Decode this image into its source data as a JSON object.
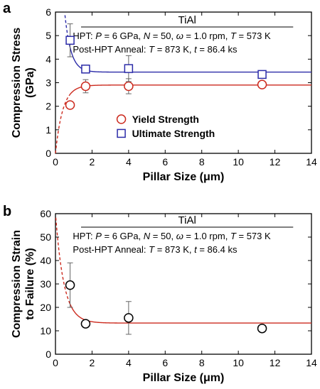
{
  "chart_data": [
    {
      "type": "scatter",
      "panel_label": "a",
      "xlabel": "Pillar Size (μm)",
      "ylabel_lines": [
        "Compression Stress",
        "(GPa)"
      ],
      "xlim": [
        0,
        14
      ],
      "ylim": [
        0,
        6
      ],
      "x_ticks": [
        0,
        2,
        4,
        6,
        8,
        10,
        12,
        14
      ],
      "y_ticks": [
        0,
        1,
        2,
        3,
        4,
        5,
        6
      ],
      "title": "TiAl",
      "annotations": [
        "HPT: P = 6 GPa, N = 50, ω = 1.0 rpm, T = 573 K",
        "Post-HPT Anneal: T = 873 K, t = 86.4 ks"
      ],
      "legend_placement": "center",
      "series": [
        {
          "name": "Yield Strength",
          "marker": "circle",
          "color": "#cc2a1e",
          "x": [
            0.8,
            1.65,
            4.0,
            11.3
          ],
          "y": [
            2.05,
            2.85,
            2.85,
            2.92
          ],
          "err": [
            0,
            0.28,
            0.32,
            0
          ]
        },
        {
          "name": "Ultimate Strength",
          "marker": "square",
          "color": "#2b2ba8",
          "x": [
            0.8,
            1.65,
            4.0,
            11.3
          ],
          "y": [
            4.8,
            3.58,
            3.6,
            3.35
          ],
          "err": [
            0.7,
            0,
            0.55,
            0
          ]
        }
      ],
      "fits": [
        {
          "color": "#cc2a1e",
          "form": "rise",
          "plateau": 2.9,
          "k": 2.5,
          "dashed_until": 0.8
        },
        {
          "color": "#2b2ba8",
          "form": "decay",
          "plateau": 3.45,
          "amp": 11.5,
          "k": 3.0,
          "dashed_until": 0.8
        }
      ]
    },
    {
      "type": "scatter",
      "panel_label": "b",
      "xlabel": "Pillar Size (μm)",
      "ylabel_lines": [
        "Compression Strain",
        "to Failure (%)"
      ],
      "xlim": [
        0,
        14
      ],
      "ylim": [
        0,
        60
      ],
      "x_ticks": [
        0,
        2,
        4,
        6,
        8,
        10,
        12,
        14
      ],
      "y_ticks": [
        0,
        10,
        20,
        30,
        40,
        50,
        60
      ],
      "title": "TiAl",
      "annotations": [
        "HPT: P = 6 GPa, N = 50, ω = 1.0 rpm, T = 573 K",
        "Post-HPT Anneal: T = 873 K, t = 86.4 ks"
      ],
      "series": [
        {
          "marker": "circle",
          "color": "#000000",
          "x": [
            0.8,
            1.65,
            4.0,
            11.3
          ],
          "y": [
            29.5,
            13.0,
            15.5,
            11.0
          ],
          "err": [
            9.5,
            0,
            7.0,
            0
          ]
        }
      ],
      "fits": [
        {
          "color": "#cc2a1e",
          "form": "decay",
          "plateau": 13.3,
          "amp": 47,
          "k": 2.2,
          "dashed_until": 0.8
        }
      ]
    }
  ]
}
